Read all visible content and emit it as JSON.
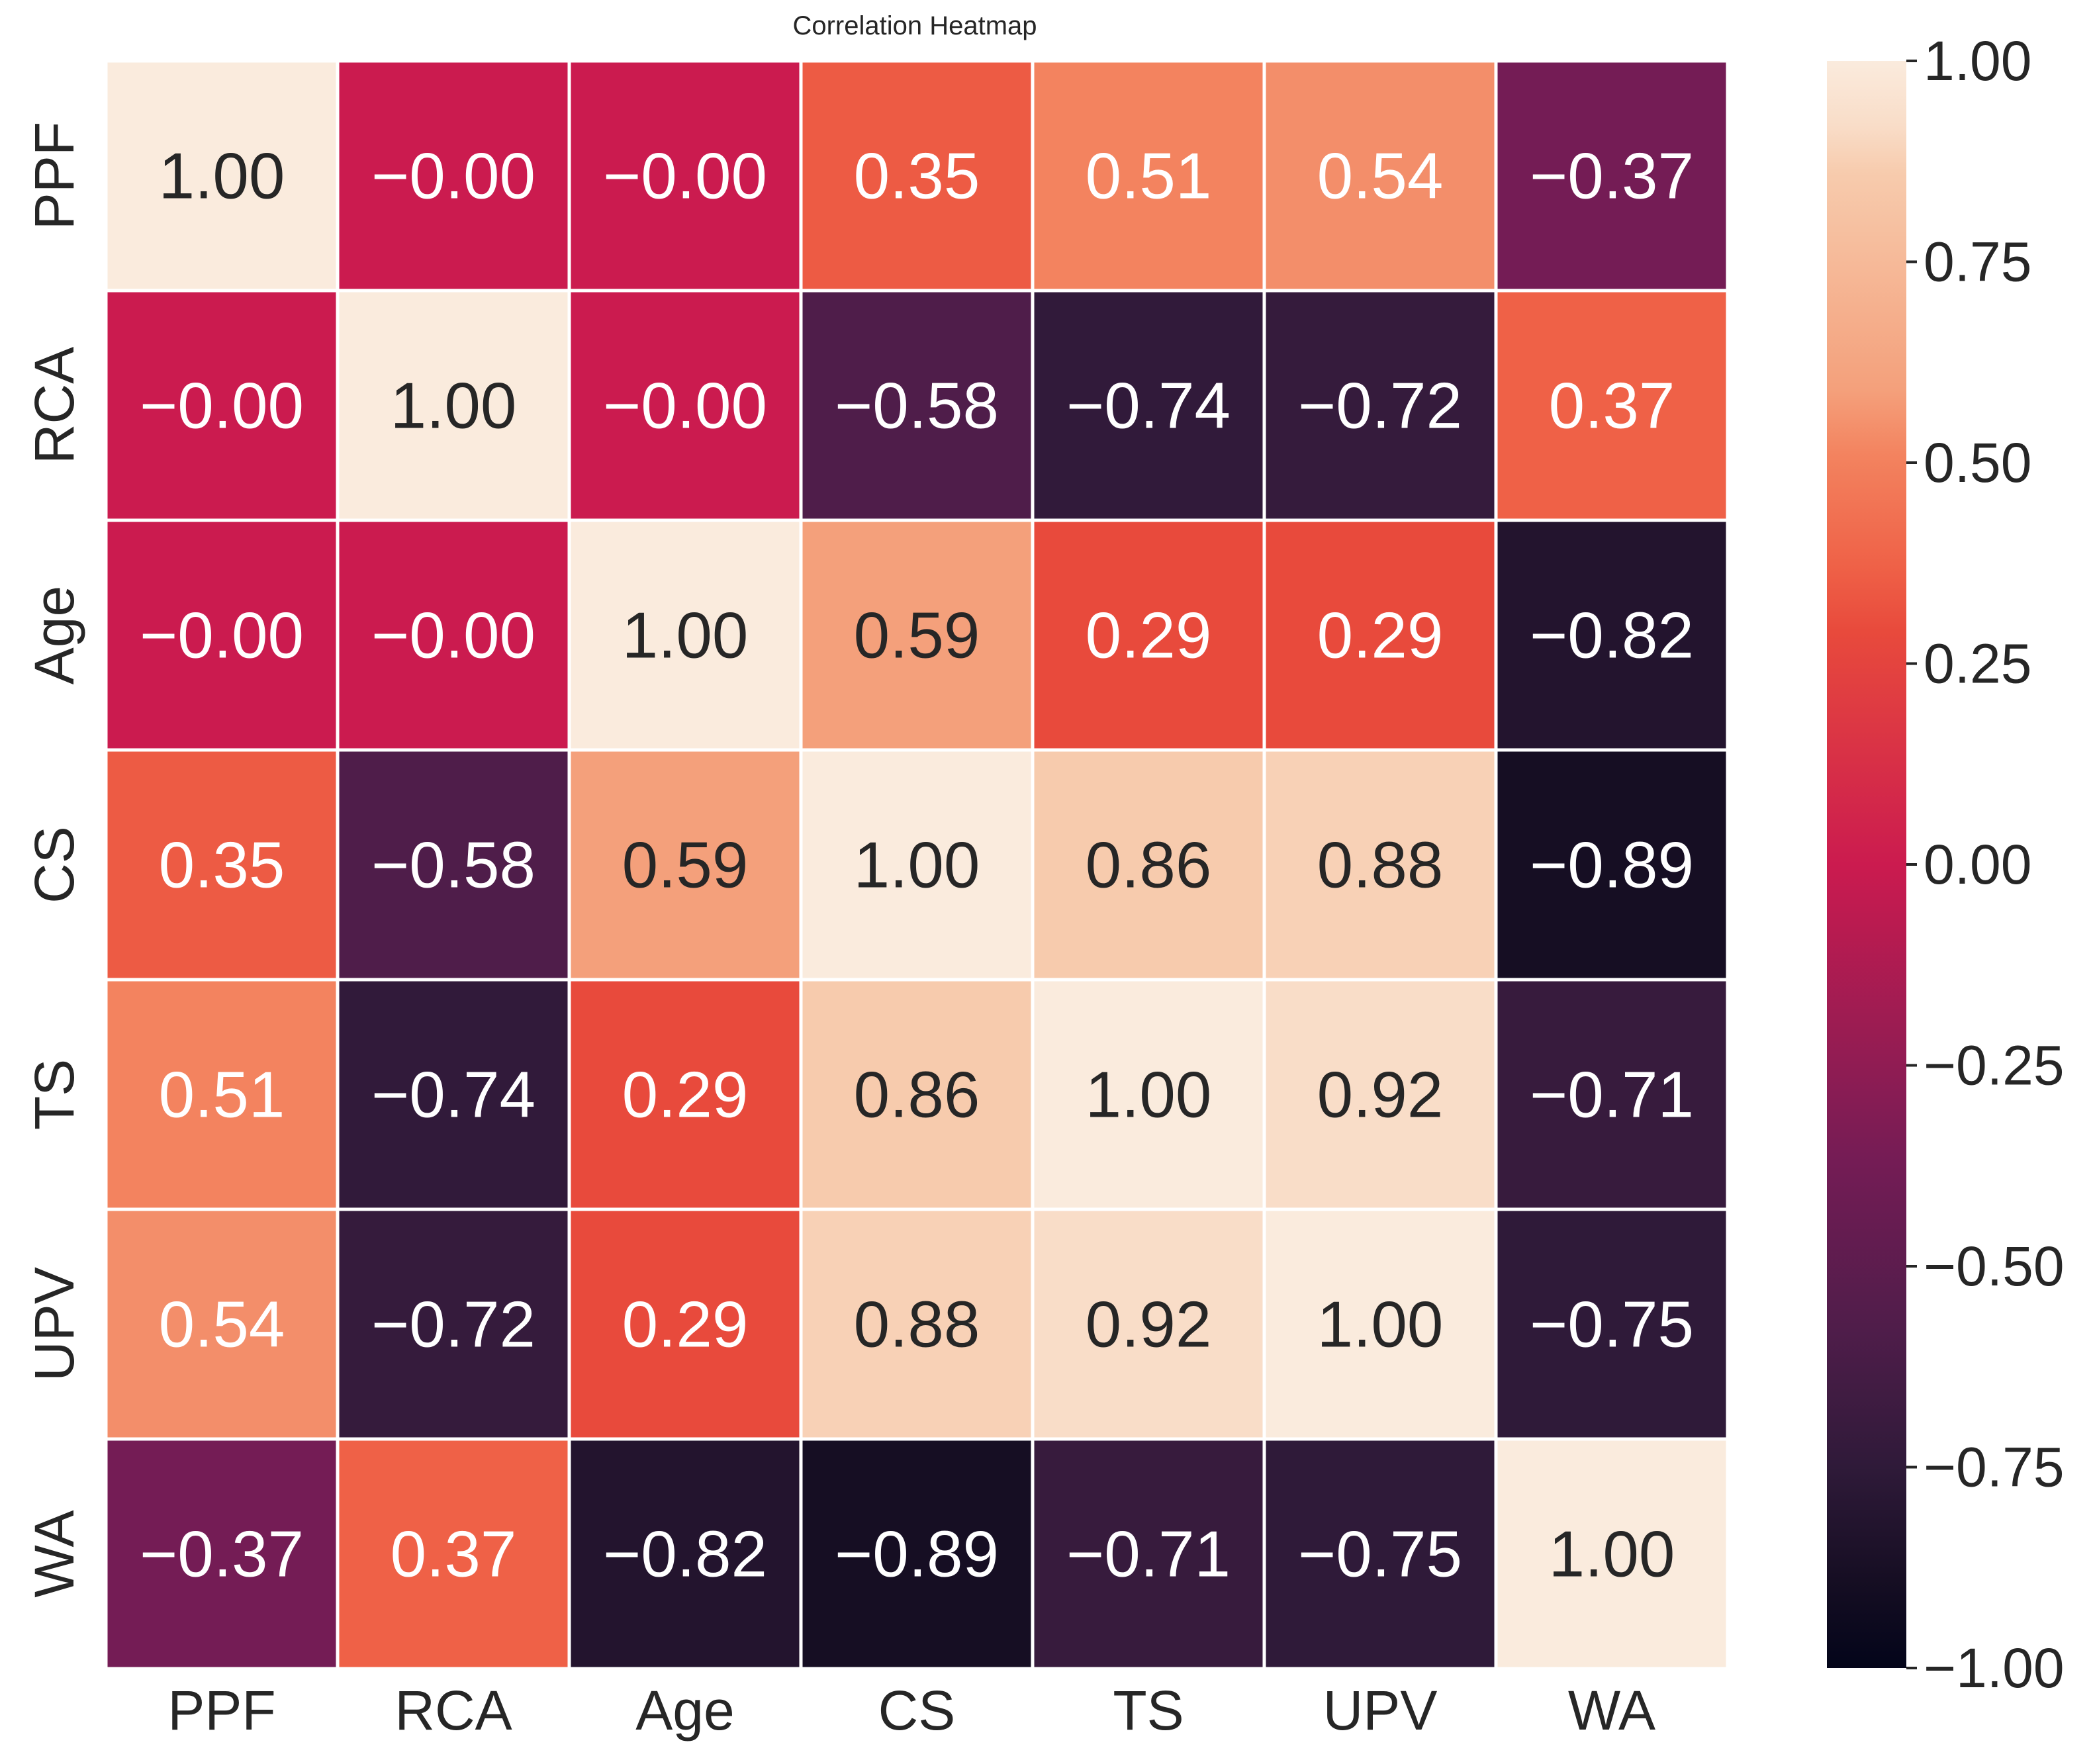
{
  "chart_data": {
    "type": "heatmap",
    "title": "Correlation Heatmap",
    "xlabel": "",
    "ylabel": "",
    "x_categories": [
      "PPF",
      "RCA",
      "Age",
      "CS",
      "TS",
      "UPV",
      "WA"
    ],
    "y_categories": [
      "PPF",
      "RCA",
      "Age",
      "CS",
      "TS",
      "UPV",
      "WA"
    ],
    "values": [
      [
        1.0,
        -0.0,
        -0.0,
        0.35,
        0.51,
        0.54,
        -0.37
      ],
      [
        -0.0,
        1.0,
        -0.0,
        -0.58,
        -0.74,
        -0.72,
        0.37
      ],
      [
        -0.0,
        -0.0,
        1.0,
        0.59,
        0.29,
        0.29,
        -0.82
      ],
      [
        0.35,
        -0.58,
        0.59,
        1.0,
        0.86,
        0.88,
        -0.89
      ],
      [
        0.51,
        -0.74,
        0.29,
        0.86,
        1.0,
        0.92,
        -0.71
      ],
      [
        0.54,
        -0.72,
        0.29,
        0.88,
        0.92,
        1.0,
        -0.75
      ],
      [
        -0.37,
        0.37,
        -0.82,
        -0.89,
        -0.71,
        -0.75,
        1.0
      ]
    ],
    "annotation_format": "0.00",
    "colormap": "rocket",
    "vmin": -1.0,
    "vmax": 1.0,
    "colorbar_ticks": [
      1.0,
      0.75,
      0.5,
      0.25,
      0.0,
      -0.25,
      -0.5,
      -0.75,
      -1.0
    ],
    "colorbar_tick_labels": [
      "1.00",
      "0.75",
      "0.50",
      "0.25",
      "0.00",
      "−0.25",
      "−0.50",
      "−0.75",
      "−1.00"
    ],
    "cell_border_color": "#ffffff",
    "annotation_light_color": "#ffffff",
    "annotation_dark_color": "#262626",
    "colormap_stops": [
      {
        "v": -1.0,
        "color": "#03051a"
      },
      {
        "v": -0.89,
        "color": "#160e23"
      },
      {
        "v": -0.75,
        "color": "#2f1a39"
      },
      {
        "v": -0.58,
        "color": "#4f1d4a"
      },
      {
        "v": -0.37,
        "color": "#741c55"
      },
      {
        "v": 0.0,
        "color": "#cb1b4f"
      },
      {
        "v": 0.29,
        "color": "#e84a3c"
      },
      {
        "v": 0.37,
        "color": "#ef6147"
      },
      {
        "v": 0.51,
        "color": "#f3835f"
      },
      {
        "v": 0.59,
        "color": "#f4a07b"
      },
      {
        "v": 0.86,
        "color": "#f7cbad"
      },
      {
        "v": 0.92,
        "color": "#f9ddc8"
      },
      {
        "v": 1.0,
        "color": "#faebdd"
      }
    ]
  }
}
